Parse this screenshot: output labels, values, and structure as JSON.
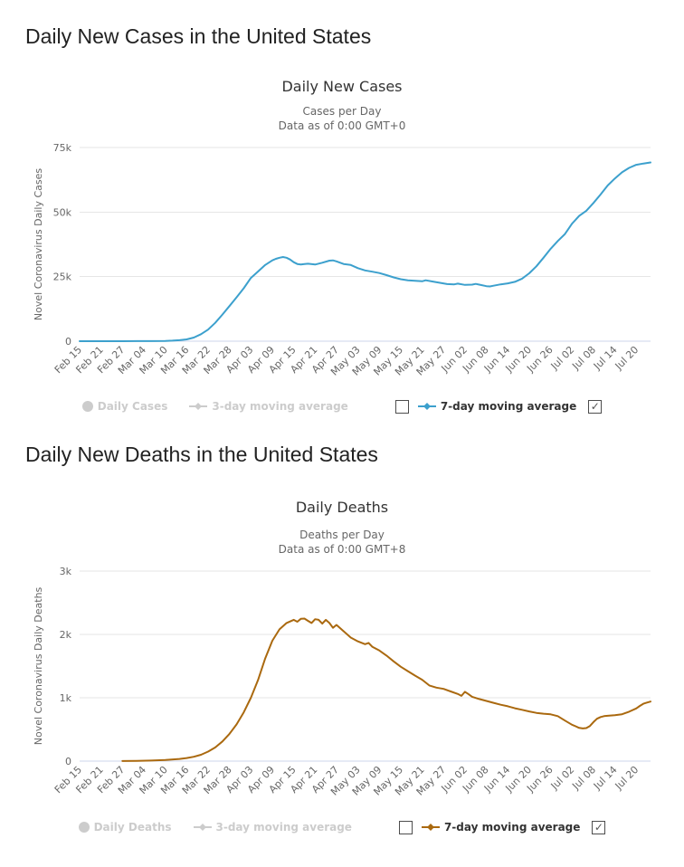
{
  "page": {
    "sections": [
      {
        "heading": "Daily New Cases in the United States"
      },
      {
        "heading": "Daily New Deaths in the United States"
      }
    ]
  },
  "colors": {
    "cases_line": "#3ca0cd",
    "deaths_line": "#aa690f",
    "grid": "#e6e6e6",
    "axis_line": "#ccd6eb",
    "axis_text": "#666666",
    "title_text": "#333333",
    "subtitle_text": "#666666",
    "heading_text": "#222222",
    "legend_hidden": "#cccccc",
    "legend_active": "#333333"
  },
  "chart_data": [
    {
      "type": "line",
      "title": "Daily New Cases",
      "subtitle_line1": "Cases per Day",
      "subtitle_line2": "Data as of 0:00 GMT+0",
      "ylabel": "Novel Coronavirus Daily Cases",
      "ylim": [
        0,
        75000
      ],
      "grid": true,
      "legend_position": "bottom",
      "yticks": [
        {
          "value": 0,
          "label": "0"
        },
        {
          "value": 25000,
          "label": "25k"
        },
        {
          "value": 50000,
          "label": "50k"
        },
        {
          "value": 75000,
          "label": "75k"
        }
      ],
      "xticks": [
        "Feb 15",
        "Feb 21",
        "Feb 27",
        "Mar 04",
        "Mar 10",
        "Mar 16",
        "Mar 22",
        "Mar 28",
        "Apr 03",
        "Apr 09",
        "Apr 15",
        "Apr 21",
        "Apr 27",
        "May 03",
        "May 09",
        "May 15",
        "May 21",
        "May 27",
        "Jun 02",
        "Jun 08",
        "Jun 14",
        "Jun 20",
        "Jun 26",
        "Jul 02",
        "Jul 08",
        "Jul 14",
        "Jul 20"
      ],
      "x_tick_interval_days": 6,
      "x_days_span": 160,
      "legend": [
        {
          "label": "Daily Cases",
          "marker": "circle",
          "state": "hidden",
          "checkbox": null
        },
        {
          "label": "3-day moving average",
          "marker": "diamond-line",
          "state": "hidden",
          "checkbox": "unchecked"
        },
        {
          "label": "7-day moving average",
          "marker": "diamond-line",
          "state": "active",
          "checkbox": "checked"
        }
      ],
      "series": [
        {
          "name": "7-day moving average",
          "color": "#3ca0cd",
          "points_day_value": [
            [
              0,
              8
            ],
            [
              6,
              12
            ],
            [
              12,
              16
            ],
            [
              16,
              25
            ],
            [
              20,
              45
            ],
            [
              24,
              110
            ],
            [
              26,
              200
            ],
            [
              28,
              380
            ],
            [
              30,
              700
            ],
            [
              32,
              1400
            ],
            [
              34,
              2700
            ],
            [
              36,
              4500
            ],
            [
              38,
              7100
            ],
            [
              40,
              10300
            ],
            [
              42,
              13600
            ],
            [
              44,
              17000
            ],
            [
              46,
              20500
            ],
            [
              48,
              24500
            ],
            [
              50,
              27000
            ],
            [
              52,
              29500
            ],
            [
              54,
              31300
            ],
            [
              55,
              31900
            ],
            [
              56,
              32300
            ],
            [
              57,
              32600
            ],
            [
              58,
              32300
            ],
            [
              59,
              31600
            ],
            [
              60,
              30600
            ],
            [
              61,
              29900
            ],
            [
              62,
              29700
            ],
            [
              63,
              29900
            ],
            [
              64,
              30000
            ],
            [
              66,
              29700
            ],
            [
              68,
              30400
            ],
            [
              70,
              31200
            ],
            [
              71,
              31300
            ],
            [
              72,
              30900
            ],
            [
              74,
              29900
            ],
            [
              76,
              29500
            ],
            [
              78,
              28300
            ],
            [
              80,
              27400
            ],
            [
              82,
              26900
            ],
            [
              84,
              26400
            ],
            [
              86,
              25600
            ],
            [
              88,
              24700
            ],
            [
              90,
              24000
            ],
            [
              92,
              23600
            ],
            [
              94,
              23400
            ],
            [
              96,
              23200
            ],
            [
              97,
              23600
            ],
            [
              99,
              23100
            ],
            [
              101,
              22600
            ],
            [
              103,
              22100
            ],
            [
              105,
              22000
            ],
            [
              106,
              22300
            ],
            [
              108,
              21800
            ],
            [
              110,
              21900
            ],
            [
              111,
              22200
            ],
            [
              112,
              21900
            ],
            [
              114,
              21300
            ],
            [
              115,
              21200
            ],
            [
              116,
              21500
            ],
            [
              118,
              22000
            ],
            [
              120,
              22400
            ],
            [
              122,
              23000
            ],
            [
              124,
              24200
            ],
            [
              126,
              26300
            ],
            [
              128,
              29000
            ],
            [
              130,
              32300
            ],
            [
              132,
              35800
            ],
            [
              134,
              38800
            ],
            [
              136,
              41500
            ],
            [
              138,
              45500
            ],
            [
              140,
              48500
            ],
            [
              142,
              50500
            ],
            [
              144,
              53500
            ],
            [
              146,
              56800
            ],
            [
              148,
              60300
            ],
            [
              150,
              63000
            ],
            [
              152,
              65400
            ],
            [
              154,
              67100
            ],
            [
              156,
              68300
            ],
            [
              158,
              68800
            ],
            [
              160,
              69200
            ]
          ]
        }
      ]
    },
    {
      "type": "line",
      "title": "Daily Deaths",
      "subtitle_line1": "Deaths per Day",
      "subtitle_line2": "Data as of 0:00 GMT+8",
      "ylabel": "Novel Coronavirus Daily Deaths",
      "ylim": [
        0,
        3000
      ],
      "grid": true,
      "legend_position": "bottom",
      "yticks": [
        {
          "value": 0,
          "label": "0"
        },
        {
          "value": 1000,
          "label": "1k"
        },
        {
          "value": 2000,
          "label": "2k"
        },
        {
          "value": 3000,
          "label": "3k"
        }
      ],
      "xticks": [
        "Feb 15",
        "Feb 21",
        "Feb 27",
        "Mar 04",
        "Mar 10",
        "Mar 16",
        "Mar 22",
        "Mar 28",
        "Apr 03",
        "Apr 09",
        "Apr 15",
        "Apr 21",
        "Apr 27",
        "May 03",
        "May 09",
        "May 15",
        "May 21",
        "May 27",
        "Jun 02",
        "Jun 08",
        "Jun 14",
        "Jun 20",
        "Jun 26",
        "Jul 02",
        "Jul 08",
        "Jul 14",
        "Jul 20"
      ],
      "x_tick_interval_days": 6,
      "x_days_span": 160,
      "legend": [
        {
          "label": "Daily Deaths",
          "marker": "circle",
          "state": "hidden",
          "checkbox": null
        },
        {
          "label": "3-day moving average",
          "marker": "diamond-line",
          "state": "hidden",
          "checkbox": "unchecked"
        },
        {
          "label": "7-day moving average",
          "marker": "diamond-line",
          "state": "active",
          "checkbox": "checked"
        }
      ],
      "series": [
        {
          "name": "7-day moving average",
          "color": "#aa690f",
          "points_day_value": [
            [
              12,
              1
            ],
            [
              16,
              3
            ],
            [
              20,
              8
            ],
            [
              24,
              18
            ],
            [
              28,
              35
            ],
            [
              30,
              48
            ],
            [
              32,
              68
            ],
            [
              34,
              100
            ],
            [
              36,
              150
            ],
            [
              38,
              215
            ],
            [
              40,
              310
            ],
            [
              42,
              430
            ],
            [
              44,
              580
            ],
            [
              46,
              770
            ],
            [
              48,
              1000
            ],
            [
              50,
              1280
            ],
            [
              52,
              1620
            ],
            [
              54,
              1900
            ],
            [
              56,
              2080
            ],
            [
              58,
              2180
            ],
            [
              60,
              2230
            ],
            [
              61,
              2200
            ],
            [
              62,
              2245
            ],
            [
              63,
              2250
            ],
            [
              64,
              2215
            ],
            [
              65,
              2180
            ],
            [
              66,
              2240
            ],
            [
              67,
              2230
            ],
            [
              68,
              2170
            ],
            [
              69,
              2230
            ],
            [
              70,
              2180
            ],
            [
              71,
              2105
            ],
            [
              72,
              2150
            ],
            [
              74,
              2050
            ],
            [
              76,
              1950
            ],
            [
              78,
              1890
            ],
            [
              80,
              1845
            ],
            [
              81,
              1865
            ],
            [
              82,
              1805
            ],
            [
              84,
              1745
            ],
            [
              86,
              1665
            ],
            [
              88,
              1575
            ],
            [
              90,
              1490
            ],
            [
              92,
              1420
            ],
            [
              94,
              1350
            ],
            [
              96,
              1285
            ],
            [
              98,
              1195
            ],
            [
              100,
              1160
            ],
            [
              102,
              1140
            ],
            [
              104,
              1100
            ],
            [
              106,
              1060
            ],
            [
              107,
              1030
            ],
            [
              108,
              1095
            ],
            [
              109,
              1055
            ],
            [
              110,
              1015
            ],
            [
              112,
              980
            ],
            [
              114,
              950
            ],
            [
              116,
              920
            ],
            [
              118,
              890
            ],
            [
              120,
              865
            ],
            [
              122,
              835
            ],
            [
              124,
              810
            ],
            [
              126,
              785
            ],
            [
              128,
              762
            ],
            [
              130,
              748
            ],
            [
              132,
              738
            ],
            [
              134,
              710
            ],
            [
              136,
              640
            ],
            [
              138,
              575
            ],
            [
              139,
              550
            ],
            [
              140,
              525
            ],
            [
              141,
              515
            ],
            [
              142,
              522
            ],
            [
              143,
              555
            ],
            [
              144,
              615
            ],
            [
              145,
              668
            ],
            [
              146,
              695
            ],
            [
              147,
              710
            ],
            [
              148,
              715
            ],
            [
              150,
              726
            ],
            [
              152,
              740
            ],
            [
              154,
              780
            ],
            [
              156,
              832
            ],
            [
              157,
              872
            ],
            [
              158,
              905
            ],
            [
              159,
              925
            ],
            [
              160,
              940
            ]
          ]
        }
      ]
    }
  ]
}
